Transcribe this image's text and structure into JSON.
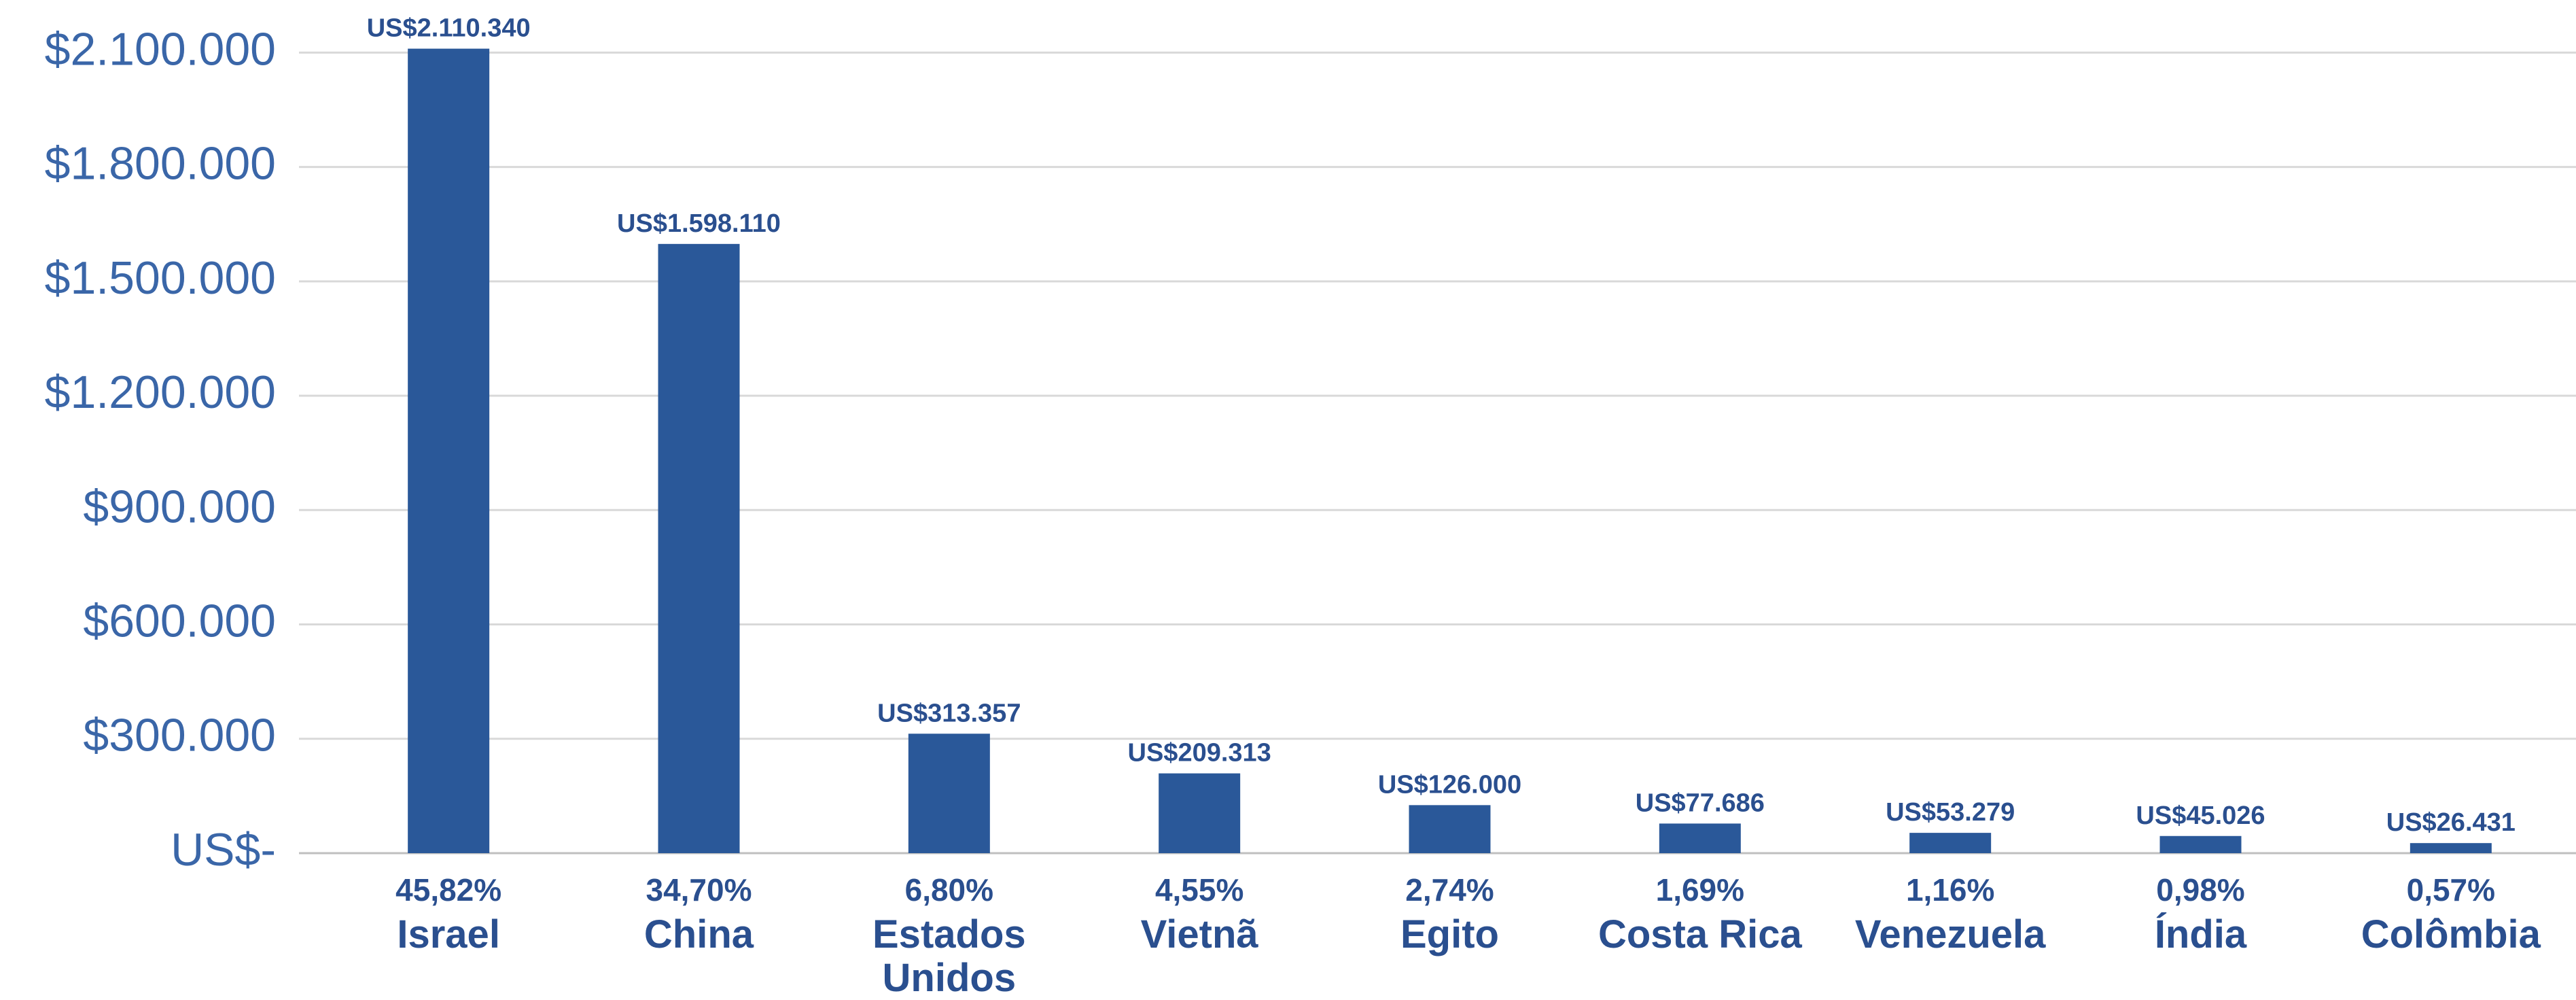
{
  "chart_data": {
    "type": "bar",
    "categories": [
      "Israel",
      "China",
      "Estados Unidos",
      "Vietnã",
      "Egito",
      "Costa Rica",
      "Venezuela",
      "Índia",
      "Colômbia"
    ],
    "values": [
      2110340,
      1598110,
      313357,
      209313,
      126000,
      77686,
      53279,
      45026,
      26431
    ],
    "value_labels": [
      "US$2.110.340",
      "US$1.598.110",
      "US$313.357",
      "US$209.313",
      "US$126.000",
      "US$77.686",
      "US$53.279",
      "US$45.026",
      "US$26.431"
    ],
    "shares": [
      45.82,
      34.7,
      6.8,
      4.55,
      2.74,
      1.69,
      1.16,
      0.98,
      0.57
    ],
    "share_labels": [
      "45,82%",
      "34,70%",
      "6,80%",
      "4,55%",
      "2,74%",
      "1,69%",
      "1,16%",
      "0,98%",
      "0,57%"
    ],
    "color": "#2a5899",
    "ylim": [
      0,
      2238000
    ],
    "yticks": [
      {
        "value": 0,
        "label": "US$-"
      },
      {
        "value": 300000,
        "label": "$300.000"
      },
      {
        "value": 600000,
        "label": "$600.000"
      },
      {
        "value": 900000,
        "label": "$900.000"
      },
      {
        "value": 1200000,
        "label": "$1.200.000"
      },
      {
        "value": 1500000,
        "label": "$1.500.000"
      },
      {
        "value": 1800000,
        "label": "$1.800.000"
      },
      {
        "value": 2100000,
        "label": "$2.100.000"
      }
    ],
    "grid": true
  }
}
